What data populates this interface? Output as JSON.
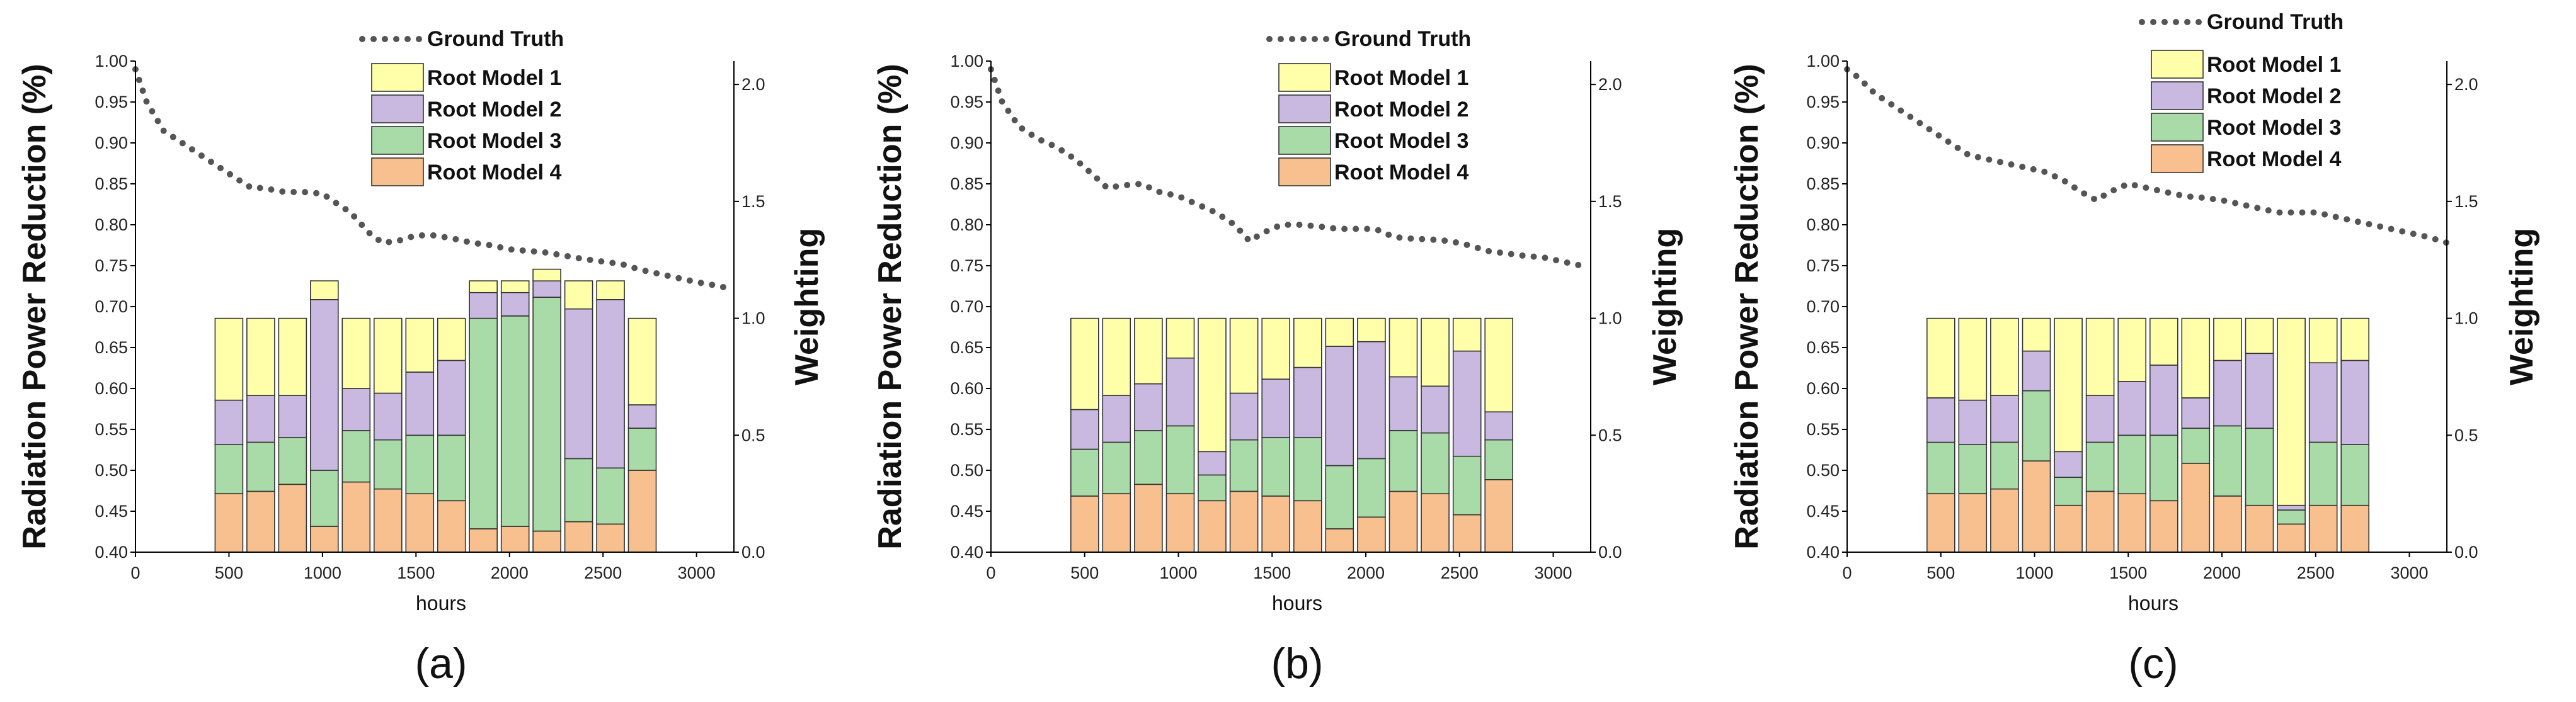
{
  "colors": {
    "ground_truth": "#555555",
    "root_model_1": "#FFFFAA",
    "root_model_2": "#C9B9E0",
    "root_model_3": "#A8DBA8",
    "root_model_4": "#F8C08E",
    "bar_edge": "#333333"
  },
  "chart_data": [
    {
      "type": "line+stacked-bar",
      "panel_label": "(a)",
      "xlabel": "hours",
      "ylabel": "Radiation Power Reduction (%)",
      "y2label": "Weighting",
      "xlim": [
        0,
        3200
      ],
      "ylim": [
        0.4,
        1.0
      ],
      "y2lim": [
        0,
        2.1
      ],
      "xticks": [
        "0",
        "500",
        "1000",
        "1500",
        "2000",
        "2500",
        "3000"
      ],
      "yticks": [
        "0.40",
        "0.45",
        "0.50",
        "0.55",
        "0.60",
        "0.65",
        "0.70",
        "0.75",
        "0.80",
        "0.85",
        "0.90",
        "0.95",
        "1.00"
      ],
      "y2ticks": [
        "0.0",
        "0.5",
        "1.0",
        "1.5",
        "2.0"
      ],
      "legend": [
        "Ground Truth",
        "Root Model 1",
        "Root Model 2",
        "Root Model 3",
        "Root Model 4"
      ],
      "legend_position": "top-right",
      "ground_truth": {
        "x": [
          0,
          60,
          150,
          250,
          350,
          450,
          550,
          620,
          680,
          800,
          900,
          1000,
          1050,
          1150,
          1250,
          1320,
          1400,
          1500,
          1600,
          1700,
          1800,
          1900,
          2000,
          2100,
          2200,
          2300,
          2400,
          2500,
          2600,
          2700,
          2800,
          2900,
          3000,
          3100,
          3180
        ],
        "y": [
          0.99,
          0.95,
          0.915,
          0.9,
          0.885,
          0.87,
          0.855,
          0.845,
          0.845,
          0.84,
          0.84,
          0.838,
          0.83,
          0.815,
          0.79,
          0.778,
          0.78,
          0.787,
          0.787,
          0.783,
          0.778,
          0.775,
          0.77,
          0.768,
          0.766,
          0.762,
          0.758,
          0.755,
          0.752,
          0.745,
          0.74,
          0.735,
          0.73,
          0.726,
          0.722
        ]
      },
      "bars": {
        "x": [
          500,
          670,
          840,
          1010,
          1180,
          1350,
          1520,
          1690,
          1860,
          2030,
          2200,
          2370,
          2540,
          2710
        ],
        "root_model_4": [
          0.25,
          0.26,
          0.29,
          0.11,
          0.3,
          0.27,
          0.25,
          0.22,
          0.1,
          0.11,
          0.09,
          0.13,
          0.12,
          0.35
        ],
        "root_model_3": [
          0.21,
          0.21,
          0.2,
          0.24,
          0.22,
          0.21,
          0.25,
          0.28,
          0.9,
          0.9,
          1.0,
          0.27,
          0.24,
          0.18
        ],
        "root_model_2": [
          0.19,
          0.2,
          0.18,
          0.73,
          0.18,
          0.2,
          0.27,
          0.32,
          0.11,
          0.1,
          0.07,
          0.64,
          0.72,
          0.1
        ],
        "root_model_1": [
          0.35,
          0.33,
          0.33,
          0.08,
          0.3,
          0.32,
          0.23,
          0.18,
          0.05,
          0.05,
          0.05,
          0.12,
          0.08,
          0.37
        ]
      }
    },
    {
      "type": "line+stacked-bar",
      "panel_label": "(b)",
      "xlabel": "hours",
      "ylabel": "Radiation Power Reduction (%)",
      "y2label": "Weighting",
      "xlim": [
        0,
        3200
      ],
      "ylim": [
        0.4,
        1.0
      ],
      "y2lim": [
        0,
        2.1
      ],
      "xticks": [
        "0",
        "500",
        "1000",
        "1500",
        "2000",
        "2500",
        "3000"
      ],
      "yticks": [
        "0.40",
        "0.45",
        "0.50",
        "0.55",
        "0.60",
        "0.65",
        "0.70",
        "0.75",
        "0.80",
        "0.85",
        "0.90",
        "0.95",
        "1.00"
      ],
      "y2ticks": [
        "0.0",
        "0.5",
        "1.0",
        "1.5",
        "2.0"
      ],
      "legend": [
        "Ground Truth",
        "Root Model 1",
        "Root Model 2",
        "Root Model 3",
        "Root Model 4"
      ],
      "legend_position": "top-right",
      "ground_truth": {
        "x": [
          0,
          60,
          150,
          250,
          350,
          450,
          550,
          620,
          700,
          800,
          900,
          1000,
          1100,
          1200,
          1300,
          1380,
          1450,
          1550,
          1650,
          1750,
          1850,
          1950,
          2050,
          2150,
          2250,
          2350,
          2450,
          2550,
          2650,
          2750,
          2850,
          2950,
          3050,
          3150
        ],
        "y": [
          0.99,
          0.95,
          0.92,
          0.905,
          0.895,
          0.88,
          0.86,
          0.845,
          0.848,
          0.85,
          0.84,
          0.835,
          0.825,
          0.815,
          0.8,
          0.78,
          0.79,
          0.8,
          0.8,
          0.798,
          0.795,
          0.795,
          0.795,
          0.785,
          0.783,
          0.782,
          0.78,
          0.775,
          0.768,
          0.765,
          0.762,
          0.76,
          0.755,
          0.75
        ]
      },
      "bars": {
        "x": [
          500,
          670,
          840,
          1010,
          1180,
          1350,
          1520,
          1690,
          1860,
          2030,
          2200,
          2370,
          2540,
          2710
        ],
        "root_model_4": [
          0.24,
          0.25,
          0.29,
          0.25,
          0.22,
          0.26,
          0.24,
          0.22,
          0.1,
          0.15,
          0.26,
          0.25,
          0.16,
          0.31
        ],
        "root_model_3": [
          0.2,
          0.22,
          0.23,
          0.29,
          0.11,
          0.22,
          0.25,
          0.27,
          0.27,
          0.25,
          0.26,
          0.26,
          0.25,
          0.17
        ],
        "root_model_2": [
          0.17,
          0.2,
          0.2,
          0.29,
          0.1,
          0.2,
          0.25,
          0.3,
          0.51,
          0.5,
          0.23,
          0.2,
          0.45,
          0.12
        ],
        "root_model_1": [
          0.39,
          0.33,
          0.28,
          0.17,
          0.57,
          0.32,
          0.26,
          0.21,
          0.12,
          0.1,
          0.25,
          0.29,
          0.14,
          0.4
        ]
      }
    },
    {
      "type": "line+stacked-bar",
      "panel_label": "(c)",
      "xlabel": "hours",
      "ylabel": "Radiation Power Reduction (%)",
      "y2label": "Weighting",
      "xlim": [
        0,
        3200
      ],
      "ylim": [
        0.4,
        1.0
      ],
      "y2lim": [
        0,
        2.1
      ],
      "xticks": [
        "0",
        "500",
        "1000",
        "1500",
        "2000",
        "2500",
        "3000"
      ],
      "yticks": [
        "0.40",
        "0.45",
        "0.50",
        "0.55",
        "0.60",
        "0.65",
        "0.70",
        "0.75",
        "0.80",
        "0.85",
        "0.90",
        "0.95",
        "1.00"
      ],
      "y2ticks": [
        "0.0",
        "0.5",
        "1.0",
        "1.5",
        "2.0"
      ],
      "legend": [
        "Ground Truth",
        "Root Model 1",
        "Root Model 2",
        "Root Model 3",
        "Root Model 4"
      ],
      "legend_position": "top-right",
      "ground_truth": {
        "x": [
          0,
          60,
          150,
          250,
          350,
          450,
          550,
          650,
          750,
          850,
          950,
          1050,
          1150,
          1250,
          1330,
          1400,
          1500,
          1600,
          1700,
          1800,
          1900,
          2000,
          2100,
          2200,
          2300,
          2400,
          2500,
          2600,
          2700,
          2800,
          2900,
          3000,
          3100,
          3200
        ],
        "y": [
          0.99,
          0.98,
          0.96,
          0.945,
          0.93,
          0.915,
          0.9,
          0.885,
          0.88,
          0.875,
          0.87,
          0.865,
          0.855,
          0.84,
          0.83,
          0.84,
          0.85,
          0.845,
          0.84,
          0.835,
          0.833,
          0.83,
          0.825,
          0.82,
          0.815,
          0.815,
          0.815,
          0.81,
          0.805,
          0.8,
          0.795,
          0.79,
          0.785,
          0.778
        ]
      },
      "bars": {
        "x": [
          500,
          670,
          840,
          1010,
          1180,
          1350,
          1520,
          1690,
          1860,
          2030,
          2200,
          2370,
          2540,
          2710
        ],
        "root_model_4": [
          0.25,
          0.25,
          0.27,
          0.39,
          0.2,
          0.26,
          0.25,
          0.22,
          0.38,
          0.24,
          0.2,
          0.12,
          0.2,
          0.2
        ],
        "root_model_3": [
          0.22,
          0.21,
          0.2,
          0.3,
          0.12,
          0.21,
          0.25,
          0.28,
          0.15,
          0.3,
          0.33,
          0.06,
          0.27,
          0.26
        ],
        "root_model_2": [
          0.19,
          0.19,
          0.2,
          0.17,
          0.11,
          0.2,
          0.23,
          0.3,
          0.13,
          0.28,
          0.32,
          0.02,
          0.34,
          0.36
        ],
        "root_model_1": [
          0.34,
          0.35,
          0.33,
          0.14,
          0.57,
          0.33,
          0.27,
          0.2,
          0.34,
          0.18,
          0.15,
          0.8,
          0.19,
          0.18
        ]
      }
    }
  ]
}
